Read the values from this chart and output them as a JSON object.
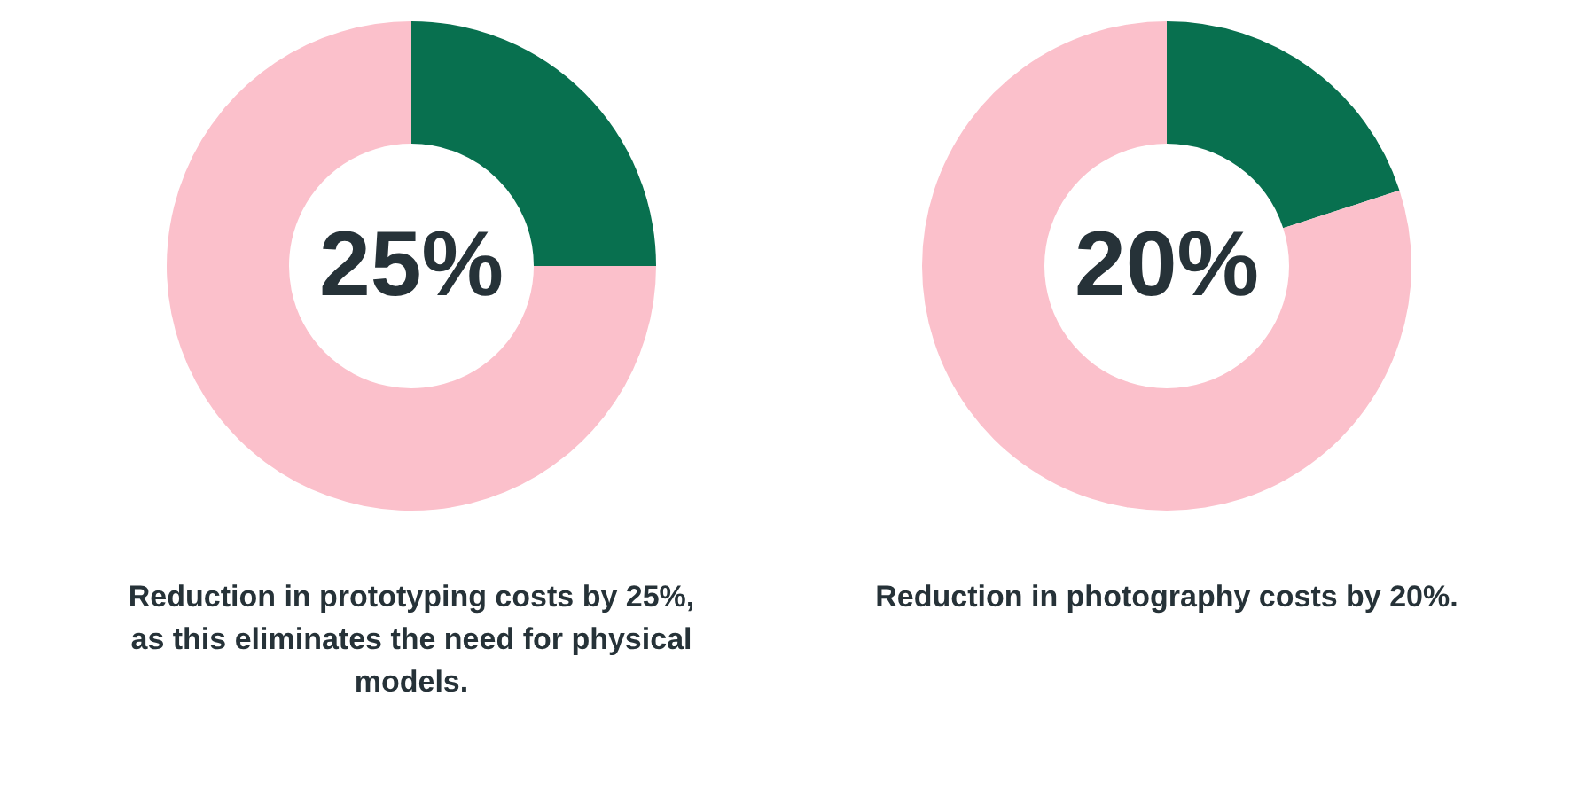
{
  "chart_data": [
    {
      "type": "donut",
      "categories": [
        null,
        null
      ],
      "values": [
        25,
        75
      ],
      "colors": [
        "#08704f",
        "#fbc0cb"
      ],
      "value_labels": [
        "25%",
        null
      ],
      "annotations": [
        "Reduction in prototyping costs by 25%, as this eliminates the need for physical models."
      ]
    },
    {
      "type": "donut",
      "categories": [
        null,
        null
      ],
      "values": [
        20,
        80
      ],
      "colors": [
        "#08704f",
        "#fbc0cb"
      ],
      "value_labels": [
        "20%",
        null
      ],
      "annotations": [
        "Reduction in photography costs by 20%."
      ]
    }
  ]
}
